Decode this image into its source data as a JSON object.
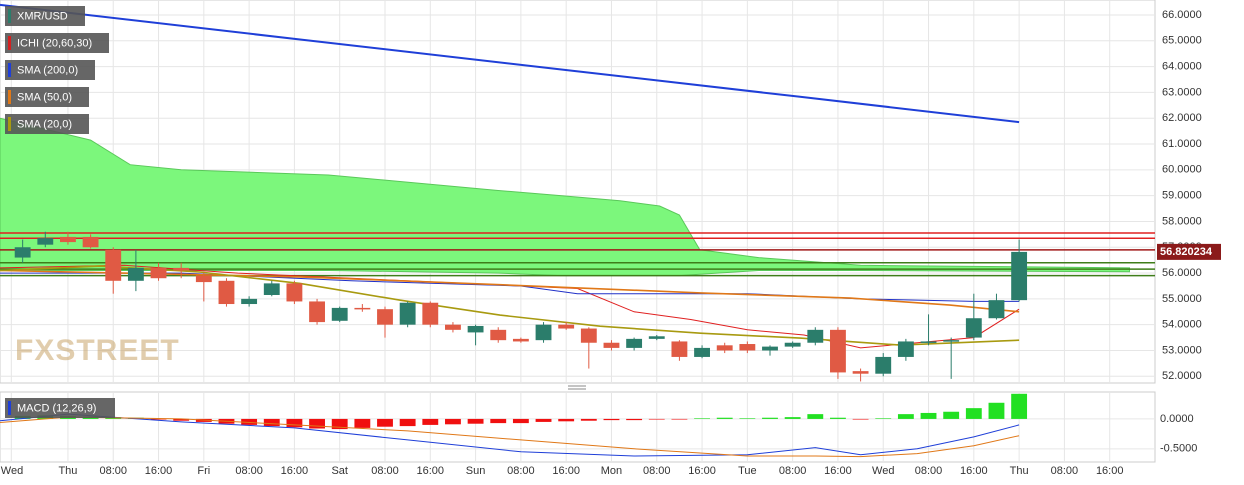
{
  "watermark": "FXSTREET",
  "chart_data": [
    {
      "type": "candlestick",
      "name": "XMR/USD",
      "up_color": "#2b7d6b",
      "down_color": "#e05a44",
      "xlim": [
        -12,
        192
      ],
      "ylim": [
        51.74,
        66.58
      ],
      "grid": true,
      "yticks": [
        {
          "value": 52,
          "label": "52.0000"
        },
        {
          "value": 53,
          "label": "53.0000"
        },
        {
          "value": 54,
          "label": "54.0000"
        },
        {
          "value": 55,
          "label": "55.0000"
        },
        {
          "value": 56,
          "label": "56.0000"
        },
        {
          "value": 57,
          "label": "57.0000"
        },
        {
          "value": 58,
          "label": "58.0000"
        },
        {
          "value": 59,
          "label": "59.0000"
        },
        {
          "value": 60,
          "label": "60.0000"
        },
        {
          "value": 61,
          "label": "61.0000"
        },
        {
          "value": 62,
          "label": "62.0000"
        },
        {
          "value": 63,
          "label": "63.0000"
        },
        {
          "value": 64,
          "label": "64.0000"
        },
        {
          "value": 65,
          "label": "65.0000"
        },
        {
          "value": 66,
          "label": "66.0000"
        }
      ],
      "last_price": 56.820234,
      "last_price_color": "#8b1a1a",
      "x": [
        -8,
        -4,
        0,
        4,
        8,
        12,
        16,
        20,
        24,
        28,
        32,
        36,
        40,
        44,
        48,
        52,
        56,
        60,
        64,
        68,
        72,
        76,
        80,
        84,
        88,
        92,
        96,
        100,
        104,
        108,
        112,
        116,
        120,
        124,
        128,
        132,
        136,
        140,
        144,
        148,
        152,
        156,
        160,
        164,
        168
      ],
      "open": [
        56.6,
        57.1,
        57.4,
        57.4,
        56.9,
        55.7,
        56.2,
        56.2,
        55.9,
        55.7,
        54.8,
        55.15,
        55.6,
        54.9,
        54.15,
        54.65,
        54.6,
        54.0,
        54.85,
        54.0,
        53.7,
        53.8,
        53.45,
        53.4,
        54.0,
        53.85,
        53.3,
        53.1,
        53.45,
        53.35,
        52.75,
        53.2,
        53.25,
        53.0,
        53.15,
        53.3,
        53.8,
        52.2,
        52.1,
        52.75,
        53.3,
        53.35,
        53.5,
        54.25,
        54.95
      ],
      "high": [
        57.3,
        57.6,
        57.6,
        57.5,
        57.0,
        56.9,
        56.4,
        56.4,
        56.0,
        55.8,
        55.1,
        55.7,
        55.7,
        55.0,
        54.7,
        54.8,
        54.7,
        54.9,
        54.9,
        54.1,
        54.0,
        53.9,
        53.5,
        54.1,
        54.1,
        53.9,
        53.4,
        53.5,
        53.6,
        53.4,
        53.2,
        53.3,
        53.35,
        53.2,
        53.35,
        53.9,
        53.9,
        52.3,
        52.9,
        53.45,
        54.4,
        53.5,
        55.2,
        55.2,
        57.3
      ],
      "low": [
        56.4,
        57.0,
        57.1,
        56.95,
        55.2,
        55.3,
        55.7,
        55.8,
        54.9,
        54.7,
        54.7,
        55.1,
        54.8,
        54.0,
        54.1,
        54.5,
        53.5,
        53.9,
        53.9,
        53.7,
        53.2,
        53.3,
        53.3,
        53.3,
        53.8,
        52.3,
        53.0,
        53.0,
        53.4,
        52.6,
        52.7,
        52.9,
        52.9,
        52.8,
        53.1,
        53.2,
        51.9,
        51.8,
        52.0,
        52.6,
        53.2,
        51.9,
        53.4,
        54.2,
        54.9
      ],
      "close": [
        57.0,
        57.35,
        57.2,
        57.0,
        55.7,
        56.2,
        55.8,
        56.1,
        55.65,
        54.8,
        55.0,
        55.6,
        54.9,
        54.1,
        54.65,
        54.6,
        54.0,
        54.85,
        54.0,
        53.8,
        53.95,
        53.4,
        53.35,
        54.0,
        53.85,
        53.3,
        53.1,
        53.45,
        53.55,
        52.75,
        53.1,
        53.0,
        53.0,
        53.15,
        53.3,
        53.8,
        52.15,
        52.1,
        52.75,
        53.35,
        53.35,
        53.4,
        54.25,
        54.95,
        56.82
      ],
      "levels": [
        {
          "value": 57.55,
          "color": "#e02020"
        },
        {
          "value": 57.35,
          "color": "#e02020"
        },
        {
          "value": 56.9,
          "color": "#a01818"
        },
        {
          "value": 56.4,
          "color": "#3f7d1a"
        },
        {
          "value": 56.15,
          "color": "#3f7d1a"
        },
        {
          "value": 55.9,
          "color": "#3f7d1a"
        }
      ],
      "ichimoku": {
        "name": "ICHI (20,60,30)",
        "color": "#d42020",
        "cloud_color": "#7cf77c",
        "cloud_edge": "#5ac85a",
        "x": [
          -12,
          4,
          11,
          20,
          46,
          76,
          87,
          97.5,
          104.5,
          108,
          111.6,
          122,
          140,
          187.5
        ],
        "span_a": [
          62.0,
          61.15,
          60.2,
          60.0,
          59.8,
          59.2,
          59.0,
          58.8,
          58.6,
          58.25,
          56.9,
          56.6,
          56.3,
          56.2
        ],
        "span_b": [
          56.1,
          56.1,
          56.1,
          56.1,
          56.1,
          56.0,
          55.9,
          55.9,
          55.9,
          55.9,
          55.95,
          56.1,
          56.1,
          56.05
        ],
        "tenkan_color": "#e02020",
        "tenkan_x": [
          -12,
          10,
          30,
          50,
          70,
          90,
          100,
          110,
          120,
          130,
          140,
          150,
          160,
          168
        ],
        "tenkan": [
          56.2,
          56.3,
          56.0,
          55.8,
          55.6,
          55.4,
          54.5,
          54.2,
          53.8,
          53.6,
          53.1,
          53.3,
          53.5,
          54.6
        ],
        "kijun_color": "#2030c8",
        "kijun_x": [
          -12,
          20,
          50,
          80,
          90,
          120,
          140,
          160,
          168
        ],
        "kijun": [
          56.0,
          56.0,
          55.7,
          55.5,
          55.2,
          55.2,
          55.0,
          54.9,
          54.9
        ]
      },
      "lines": [
        {
          "name": "SMA (200,0)",
          "color": "#1f3fd8",
          "width": 2,
          "x": [
            -12,
            41,
            88.7,
            129.3,
            168
          ],
          "values": [
            66.39,
            65.05,
            63.85,
            62.83,
            61.85
          ]
        },
        {
          "name": "SMA (50,0)",
          "color": "#e07818",
          "width": 1.6,
          "x": [
            -12,
            41,
            76.3,
            111.7,
            138.2,
            155.8,
            168
          ],
          "values": [
            56.1,
            55.85,
            55.55,
            55.23,
            55.03,
            54.76,
            54.5
          ]
        },
        {
          "name": "SMA (20,0)",
          "color": "#a89a10",
          "width": 1.6,
          "x": [
            -12,
            5.7,
            23.3,
            41,
            58.7,
            76.3,
            94,
            111.7,
            129.3,
            147,
            168
          ],
          "values": [
            56.1,
            56.27,
            56.04,
            55.6,
            54.95,
            54.37,
            53.94,
            53.67,
            53.48,
            53.21,
            53.4
          ]
        }
      ]
    },
    {
      "type": "macd",
      "name": "MACD (12,26,9)",
      "up_color": "#22e022",
      "down_color": "#f01010",
      "xlim": [
        -12,
        192
      ],
      "ylim": [
        -0.72,
        0.45
      ],
      "yticks": [
        {
          "value": -0.5,
          "label": "-0.5000"
        },
        {
          "value": 0,
          "label": "0.0000"
        }
      ],
      "xticks": [
        {
          "value": -10,
          "label": "Wed"
        },
        {
          "value": 0,
          "label": "Thu"
        },
        {
          "value": 8,
          "label": "08:00"
        },
        {
          "value": 16,
          "label": "16:00"
        },
        {
          "value": 24,
          "label": "Fri"
        },
        {
          "value": 32,
          "label": "08:00"
        },
        {
          "value": 40,
          "label": "16:00"
        },
        {
          "value": 48,
          "label": "Sat"
        },
        {
          "value": 56,
          "label": "08:00"
        },
        {
          "value": 64,
          "label": "16:00"
        },
        {
          "value": 72,
          "label": "Sun"
        },
        {
          "value": 80,
          "label": "08:00"
        },
        {
          "value": 88,
          "label": "16:00"
        },
        {
          "value": 96,
          "label": "Mon"
        },
        {
          "value": 104,
          "label": "08:00"
        },
        {
          "value": 112,
          "label": "16:00"
        },
        {
          "value": 120,
          "label": "Tue"
        },
        {
          "value": 128,
          "label": "08:00"
        },
        {
          "value": 136,
          "label": "16:00"
        },
        {
          "value": 144,
          "label": "Wed"
        },
        {
          "value": 152,
          "label": "08:00"
        },
        {
          "value": 160,
          "label": "16:00"
        },
        {
          "value": 168,
          "label": "Thu"
        },
        {
          "value": 176,
          "label": "08:00"
        },
        {
          "value": 184,
          "label": "16:00"
        }
      ],
      "x": [
        -8,
        -4,
        0,
        4,
        8,
        12,
        16,
        20,
        24,
        28,
        32,
        36,
        40,
        44,
        48,
        52,
        56,
        60,
        64,
        68,
        72,
        76,
        80,
        84,
        88,
        92,
        96,
        100,
        104,
        108,
        112,
        116,
        120,
        124,
        128,
        132,
        136,
        140,
        144,
        148,
        152,
        156,
        160,
        164,
        168
      ],
      "histogram": [
        0.05,
        0.06,
        0.05,
        0.04,
        0.03,
        0.02,
        -0.01,
        -0.03,
        -0.05,
        -0.08,
        -0.1,
        -0.12,
        -0.14,
        -0.16,
        -0.17,
        -0.15,
        -0.13,
        -0.12,
        -0.1,
        -0.09,
        -0.08,
        -0.07,
        -0.07,
        -0.05,
        -0.04,
        -0.03,
        -0.02,
        -0.02,
        -0.01,
        -0.01,
        0.01,
        0.02,
        0.01,
        0.02,
        0.03,
        0.08,
        0.02,
        -0.01,
        0.01,
        0.08,
        0.1,
        0.12,
        0.18,
        0.27,
        0.42
      ],
      "line_x": [
        -12,
        0,
        20,
        40,
        60,
        80,
        100,
        120,
        132,
        140,
        150,
        160,
        168
      ],
      "macd_color": "#1f3fd8",
      "macd": [
        -0.03,
        0.08,
        -0.05,
        -0.15,
        -0.35,
        -0.55,
        -0.62,
        -0.6,
        -0.48,
        -0.6,
        -0.5,
        -0.3,
        -0.1
      ],
      "signal_color": "#e07818",
      "signal": [
        -0.06,
        0.03,
        0.0,
        -0.1,
        -0.2,
        -0.35,
        -0.5,
        -0.62,
        -0.62,
        -0.63,
        -0.58,
        -0.45,
        -0.28
      ]
    }
  ]
}
